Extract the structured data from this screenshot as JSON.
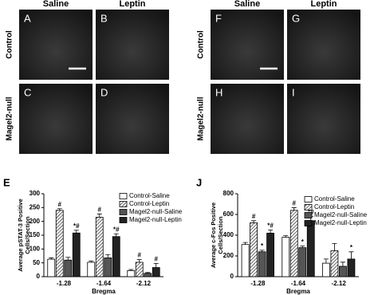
{
  "panels": {
    "headers": [
      "Saline",
      "Leptin",
      "Saline",
      "Leptin"
    ],
    "row_labels": [
      "Control",
      "Magel2-null",
      "Control",
      "Magel2-null"
    ],
    "letters": [
      "A",
      "B",
      "C",
      "D",
      "F",
      "G",
      "H",
      "I"
    ]
  },
  "chart_data": [
    {
      "type": "bar",
      "panel_label": "E",
      "ylabel": [
        "Average pSTAT-3 Positive",
        "Cells/Section"
      ],
      "xlabel": "Bregma",
      "categories": [
        "-1.28",
        "-1.64",
        "-2.12"
      ],
      "ylim": [
        0,
        300
      ],
      "yticks": [
        0,
        50,
        100,
        150,
        200,
        250,
        300
      ],
      "series": [
        {
          "name": "Control-Saline",
          "color": "#ffffff",
          "values": [
            63,
            52,
            22
          ],
          "errors": [
            5,
            5,
            4
          ],
          "annotations": [
            null,
            null,
            null
          ]
        },
        {
          "name": "Control-Leptin",
          "color": "#ffffff",
          "fill_pattern": "diagonal-hatch",
          "values": [
            240,
            215,
            52
          ],
          "errors": [
            6,
            12,
            10
          ],
          "annotations": [
            "#",
            "#",
            "#"
          ]
        },
        {
          "name": "Magel2-null-Saline",
          "color": "#555555",
          "values": [
            60,
            68,
            12
          ],
          "errors": [
            10,
            12,
            3
          ],
          "annotations": [
            null,
            null,
            null
          ]
        },
        {
          "name": "Magel2-null-Leptin",
          "color": "#222222",
          "values": [
            158,
            145,
            33
          ],
          "errors": [
            10,
            10,
            15
          ],
          "annotations": [
            "*#",
            "*#",
            "#"
          ]
        }
      ]
    },
    {
      "type": "bar",
      "panel_label": "J",
      "ylabel": [
        "Average c-Fos Positive",
        "Cells/Section"
      ],
      "xlabel": "Bregma",
      "categories": [
        "-1.28",
        "-1.64",
        "-2.12"
      ],
      "ylim": [
        0,
        800
      ],
      "yticks": [
        0,
        200,
        400,
        600,
        800
      ],
      "series": [
        {
          "name": "Control-Saline",
          "color": "#ffffff",
          "values": [
            310,
            380,
            130
          ],
          "errors": [
            20,
            15,
            40
          ],
          "annotations": [
            null,
            null,
            null
          ]
        },
        {
          "name": "Control-Leptin",
          "color": "#ffffff",
          "fill_pattern": "diagonal-hatch",
          "values": [
            520,
            640,
            250
          ],
          "errors": [
            20,
            25,
            70
          ],
          "annotations": [
            "#",
            "#",
            null
          ]
        },
        {
          "name": "Magel2-null-Saline",
          "color": "#555555",
          "values": [
            240,
            280,
            100
          ],
          "errors": [
            15,
            15,
            40
          ],
          "annotations": [
            "*",
            "*",
            null
          ]
        },
        {
          "name": "Magel2-null-Leptin",
          "color": "#222222",
          "values": [
            420,
            540,
            170
          ],
          "errors": [
            30,
            40,
            70
          ],
          "annotations": [
            "*#",
            "*#",
            "*"
          ]
        }
      ]
    }
  ]
}
